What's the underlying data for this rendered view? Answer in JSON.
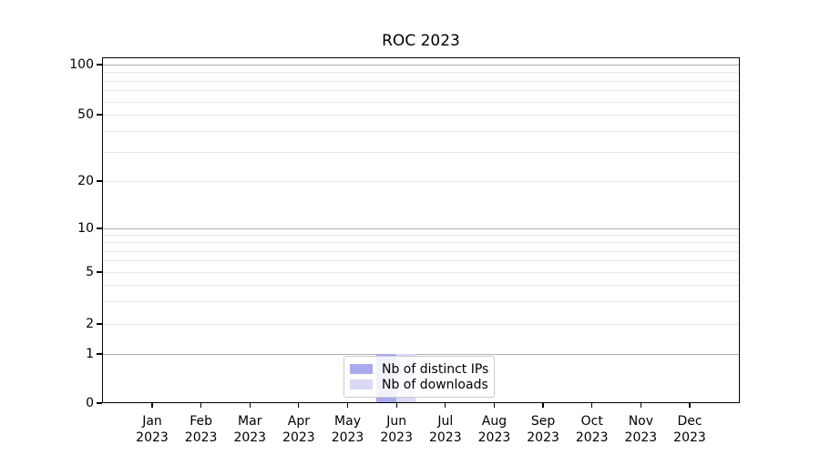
{
  "chart_data": {
    "type": "bar",
    "title": "ROC 2023",
    "xlabel": "",
    "ylabel": "",
    "categories": [
      {
        "month": "Jan",
        "year": "2023"
      },
      {
        "month": "Feb",
        "year": "2023"
      },
      {
        "month": "Mar",
        "year": "2023"
      },
      {
        "month": "Apr",
        "year": "2023"
      },
      {
        "month": "May",
        "year": "2023"
      },
      {
        "month": "Jun",
        "year": "2023"
      },
      {
        "month": "Jul",
        "year": "2023"
      },
      {
        "month": "Aug",
        "year": "2023"
      },
      {
        "month": "Sep",
        "year": "2023"
      },
      {
        "month": "Oct",
        "year": "2023"
      },
      {
        "month": "Nov",
        "year": "2023"
      },
      {
        "month": "Dec",
        "year": "2023"
      }
    ],
    "series": [
      {
        "name": "Nb of distinct IPs",
        "color": "#aaaaee",
        "values": [
          0,
          0,
          0,
          0,
          0,
          1,
          0,
          0,
          0,
          0,
          0,
          0
        ]
      },
      {
        "name": "Nb of downloads",
        "color": "#d9d9f6",
        "values": [
          0,
          0,
          0,
          0,
          0,
          1,
          0,
          0,
          0,
          0,
          0,
          0
        ]
      }
    ],
    "y_axis": {
      "scale": "symlog",
      "ticks": [
        {
          "value": 0,
          "label": "0"
        },
        {
          "value": 1,
          "label": "1"
        },
        {
          "value": 2,
          "label": "2"
        },
        {
          "value": 5,
          "label": "5"
        },
        {
          "value": 10,
          "label": "10"
        },
        {
          "value": 20,
          "label": "20"
        },
        {
          "value": 50,
          "label": "50"
        },
        {
          "value": 100,
          "label": "100"
        }
      ],
      "minor_ticks": [
        3,
        4,
        6,
        7,
        8,
        9,
        30,
        40,
        60,
        70,
        80,
        90
      ],
      "major_gridlines_at": [
        1,
        10,
        100
      ]
    },
    "legend": {
      "position": "lower center",
      "entries": [
        "Nb of distinct IPs",
        "Nb of downloads"
      ]
    },
    "grid": "on",
    "colors": {
      "major_grid": "#b0b0b0",
      "minor_grid": "#e9e9e9",
      "axis": "#000000",
      "legend_border": "#cccccc",
      "background": "#ffffff"
    }
  }
}
